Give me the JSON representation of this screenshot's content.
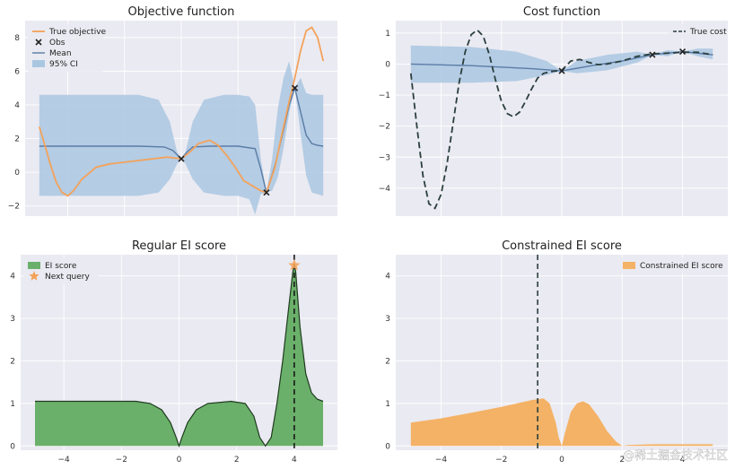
{
  "watermark": "@稀土掘金技术社区",
  "chart_data": [
    {
      "type": "line",
      "title": "Objective function",
      "xlim": [
        -5.5,
        5.5
      ],
      "ylim": [
        -2.6,
        9.0
      ],
      "xticks": [
        -4,
        -2,
        0,
        2,
        4
      ],
      "xtick_labels": [
        "",
        "",
        "",
        "",
        ""
      ],
      "yticks": [
        -2,
        0,
        2,
        4,
        6,
        8
      ],
      "ytick_labels": [
        "−2",
        "0",
        "2",
        "4",
        "6",
        "8"
      ],
      "grid": true,
      "legend_position": "top-left",
      "legend": [
        "True objective",
        "Obs",
        "Mean",
        "95% CI"
      ],
      "colors": {
        "true": "#f4a259",
        "mean": "#5a7ca6",
        "ci": "#aac7e2",
        "obs": "#222222"
      },
      "true_objective": {
        "x": [
          -5.0,
          -4.8,
          -4.6,
          -4.4,
          -4.2,
          -4.0,
          -3.8,
          -3.5,
          -3.0,
          -2.5,
          -2.0,
          -1.5,
          -1.0,
          -0.5,
          0.0,
          0.3,
          0.6,
          1.0,
          1.3,
          1.6,
          1.9,
          2.2,
          2.5,
          2.8,
          3.0,
          3.3,
          3.5,
          3.8,
          4.0,
          4.2,
          4.4,
          4.6,
          4.8,
          5.0
        ],
        "y": [
          2.7,
          1.6,
          0.4,
          -0.6,
          -1.2,
          -1.4,
          -1.1,
          -0.4,
          0.3,
          0.5,
          0.6,
          0.7,
          0.8,
          0.9,
          0.8,
          1.2,
          1.7,
          1.9,
          1.6,
          1.0,
          0.3,
          -0.5,
          -0.8,
          -1.1,
          -1.2,
          0.3,
          1.9,
          4.2,
          5.6,
          7.2,
          8.4,
          8.6,
          8.0,
          6.6
        ]
      },
      "mean": {
        "x": [
          -5.0,
          -3.0,
          -1.5,
          -0.6,
          -0.3,
          0.0,
          0.2,
          0.4,
          1.0,
          2.0,
          2.6,
          2.8,
          3.0,
          3.3,
          3.6,
          3.8,
          4.0,
          4.2,
          4.4,
          4.6,
          4.8,
          5.0
        ],
        "y": [
          1.55,
          1.55,
          1.55,
          1.5,
          1.3,
          0.8,
          1.2,
          1.5,
          1.55,
          1.55,
          1.4,
          0.2,
          -1.2,
          0.4,
          2.5,
          4.0,
          5.0,
          3.6,
          2.2,
          1.7,
          1.6,
          1.55
        ]
      },
      "ci": {
        "x": [
          -5.0,
          -3.0,
          -1.5,
          -0.8,
          -0.4,
          -0.15,
          0.0,
          0.15,
          0.4,
          0.8,
          1.5,
          2.0,
          2.4,
          2.6,
          2.8,
          3.0,
          3.2,
          3.4,
          3.6,
          3.8,
          4.0,
          4.2,
          4.4,
          4.6,
          5.0
        ],
        "lower": [
          -1.4,
          -1.4,
          -1.4,
          -1.2,
          -0.4,
          0.5,
          0.8,
          0.5,
          -0.4,
          -1.2,
          -1.4,
          -1.4,
          -1.6,
          -2.5,
          -1.3,
          -1.2,
          -1.1,
          -0.3,
          1.4,
          3.5,
          5.0,
          2.3,
          -0.2,
          -1.2,
          -1.4
        ],
        "upper": [
          4.6,
          4.6,
          4.6,
          4.3,
          3.0,
          1.2,
          0.8,
          1.2,
          3.0,
          4.3,
          4.6,
          4.6,
          4.5,
          4.0,
          0.8,
          -1.2,
          0.8,
          3.8,
          5.6,
          6.6,
          5.0,
          5.6,
          4.7,
          4.6,
          4.6
        ]
      },
      "obs": {
        "x": [
          0.0,
          3.0,
          4.0
        ],
        "y": [
          0.8,
          -1.2,
          5.0
        ]
      }
    },
    {
      "type": "line",
      "title": "Cost function",
      "xlim": [
        -5.5,
        5.5
      ],
      "ylim": [
        -4.9,
        1.4
      ],
      "xticks": [
        -4,
        -2,
        0,
        2,
        4
      ],
      "xtick_labels": [
        "",
        "",
        "",
        "",
        ""
      ],
      "yticks": [
        -4,
        -3,
        -2,
        -1,
        0,
        1
      ],
      "ytick_labels": [
        "−4",
        "−3",
        "−2",
        "−1",
        "0",
        "1"
      ],
      "grid": true,
      "legend_position": "top-right",
      "legend": [
        "True cost"
      ],
      "colors": {
        "true": "#2b3f3d",
        "mean": "#5a7ca6",
        "ci": "#aac7e2",
        "obs": "#222222"
      },
      "true_cost": {
        "x": [
          -5.0,
          -4.8,
          -4.6,
          -4.4,
          -4.2,
          -4.0,
          -3.8,
          -3.6,
          -3.4,
          -3.2,
          -3.0,
          -2.8,
          -2.6,
          -2.4,
          -2.2,
          -2.0,
          -1.8,
          -1.6,
          -1.4,
          -1.2,
          -1.0,
          -0.8,
          -0.6,
          -0.4,
          -0.2,
          0.0,
          0.3,
          0.6,
          0.9,
          1.2,
          1.5,
          2.0,
          2.5,
          3.0,
          3.5,
          4.0,
          4.5,
          5.0
        ],
        "y": [
          -0.3,
          -2.0,
          -3.6,
          -4.5,
          -4.65,
          -4.2,
          -3.2,
          -1.9,
          -0.6,
          0.4,
          0.95,
          1.1,
          0.9,
          0.3,
          -0.5,
          -1.2,
          -1.6,
          -1.7,
          -1.55,
          -1.2,
          -0.8,
          -0.45,
          -0.3,
          -0.25,
          -0.22,
          -0.2,
          0.1,
          0.15,
          0.05,
          -0.02,
          0.0,
          0.1,
          0.25,
          0.33,
          0.35,
          0.38,
          0.38,
          0.3
        ]
      },
      "mean": {
        "x": [
          -5.0,
          -3.0,
          -1.0,
          0.0,
          1.0,
          2.0,
          3.0,
          4.0,
          4.5,
          5.0
        ],
        "y": [
          0.0,
          -0.05,
          -0.15,
          -0.22,
          -0.05,
          0.1,
          0.3,
          0.4,
          0.35,
          0.3
        ]
      },
      "ci": {
        "x": [
          -5.0,
          -3.0,
          -1.5,
          -0.5,
          0.0,
          0.5,
          1.5,
          2.5,
          3.0,
          3.5,
          4.0,
          4.5,
          5.0
        ],
        "lower": [
          -0.6,
          -0.6,
          -0.55,
          -0.35,
          -0.22,
          -0.3,
          -0.2,
          0.05,
          0.3,
          0.25,
          0.4,
          0.25,
          0.15
        ],
        "upper": [
          0.6,
          0.55,
          0.4,
          0.1,
          -0.22,
          0.1,
          0.3,
          0.4,
          0.3,
          0.45,
          0.4,
          0.5,
          0.5
        ]
      },
      "obs": {
        "x": [
          0.0,
          3.0,
          4.0
        ],
        "y": [
          -0.22,
          0.3,
          0.4
        ]
      }
    },
    {
      "type": "area",
      "title": "Regular EI score",
      "xlim": [
        -5.5,
        5.5
      ],
      "ylim": [
        -0.1,
        4.5
      ],
      "xticks": [
        -4,
        -2,
        0,
        2,
        4
      ],
      "xtick_labels": [
        "−4",
        "−2",
        "0",
        "2",
        "4"
      ],
      "yticks": [
        0,
        1,
        2,
        3,
        4
      ],
      "ytick_labels": [
        "0",
        "1",
        "2",
        "3",
        "4"
      ],
      "grid": true,
      "legend_position": "top-left",
      "legend": [
        "EI score",
        "Next query"
      ],
      "colors": {
        "fill": "#6ab06a",
        "line": "#1f3b1f",
        "star": "#f4a259",
        "vline": "#1a1a1a"
      },
      "ei": {
        "x": [
          -5.0,
          -1.5,
          -1.0,
          -0.6,
          -0.3,
          -0.1,
          0.0,
          0.1,
          0.3,
          0.6,
          1.0,
          1.8,
          2.3,
          2.6,
          2.8,
          3.0,
          3.2,
          3.4,
          3.6,
          3.8,
          3.95,
          4.0,
          4.05,
          4.2,
          4.4,
          4.6,
          4.8,
          5.0
        ],
        "y": [
          1.05,
          1.05,
          1.0,
          0.85,
          0.55,
          0.2,
          0.0,
          0.2,
          0.55,
          0.85,
          1.0,
          1.05,
          1.0,
          0.7,
          0.2,
          0.0,
          0.2,
          1.0,
          2.0,
          3.2,
          4.1,
          4.25,
          4.1,
          2.8,
          1.7,
          1.25,
          1.1,
          1.05
        ]
      },
      "next_query": {
        "x": 4.0,
        "y": 4.25
      },
      "vline_x": 4.0
    },
    {
      "type": "area",
      "title": "Constrained EI score",
      "xlim": [
        -5.5,
        5.5
      ],
      "ylim": [
        -0.1,
        4.5
      ],
      "xticks": [
        -4,
        -2,
        0,
        2,
        4
      ],
      "xtick_labels": [
        "−4",
        "−2",
        "0",
        "2",
        "4"
      ],
      "yticks": [
        0,
        1,
        2,
        3,
        4
      ],
      "ytick_labels": [
        "0",
        "1",
        "2",
        "3",
        "4"
      ],
      "grid": true,
      "legend_position": "top-right",
      "legend": [
        "Constrained EI score"
      ],
      "colors": {
        "fill": "#f4b266",
        "vline": "#2b3f3d"
      },
      "cei": {
        "x": [
          -5.0,
          -4.0,
          -3.0,
          -2.0,
          -1.0,
          -0.6,
          -0.4,
          -0.2,
          -0.1,
          0.0,
          0.1,
          0.3,
          0.5,
          0.7,
          0.9,
          1.2,
          1.5,
          1.8,
          2.0,
          2.2,
          3.0,
          4.0,
          5.0
        ],
        "y": [
          0.55,
          0.65,
          0.78,
          0.92,
          1.08,
          1.12,
          1.0,
          0.55,
          0.2,
          0.0,
          0.3,
          0.8,
          1.0,
          1.05,
          0.98,
          0.7,
          0.35,
          0.1,
          0.0,
          0.02,
          0.04,
          0.04,
          0.04
        ]
      },
      "vline_x": -0.8
    }
  ]
}
